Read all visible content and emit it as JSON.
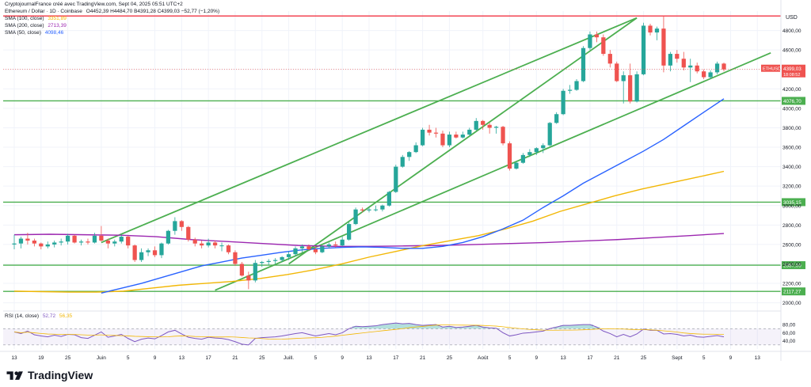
{
  "caption": "CryptojournalFrance créé avec TradingView.com, Sept 04, 2025 05:51 UTC+2",
  "symbol_line": {
    "name": "Ethereum / Dollar · 1D · Coinbase",
    "ohlc": "O4452,39 H4484,70 B4391,28 C4399,03 −52,77 (−1,20%)"
  },
  "indicators": [
    {
      "label": "SMA (100, close)",
      "value": "3351,89",
      "color": "#f2b705"
    },
    {
      "label": "SMA (200, close)",
      "value": "2713,39",
      "color": "#9c27b0"
    },
    {
      "label": "SMA (50, close)",
      "value": "4098,46",
      "color": "#2962ff"
    }
  ],
  "rsi_label": {
    "label": "RSI (14, close)",
    "v1": "52,72",
    "v2": "56,35"
  },
  "currency": "USD",
  "price_tag": {
    "symbol": "ETHUSD",
    "value": "4399,03",
    "countdown": "18:08:52"
  },
  "brand": "TradingView",
  "colors": {
    "up": "#26a69a",
    "down": "#ef5350",
    "channel": "#4caf50",
    "sma50": "#2962ff",
    "sma100": "#f2b705",
    "sma200": "#9c27b0",
    "resistance": "#f23645",
    "rsi": "#7e57c2"
  },
  "chart_data": {
    "type": "candlestick",
    "timeframe": "1D",
    "y_axis": {
      "ylim": [
        1940,
        5000
      ],
      "ticks": [
        "2000,00",
        "2200,00",
        "2400,00",
        "2600,00",
        "2800,00",
        "3000,00",
        "3200,00",
        "3400,00",
        "3600,00",
        "3800,00",
        "4000,00",
        "4200,00",
        "4400,00",
        "4600,00",
        "4800,00"
      ],
      "tick_values": [
        2000,
        2200,
        2400,
        2600,
        2800,
        3000,
        3200,
        3400,
        3600,
        3800,
        4000,
        4200,
        4400,
        4600,
        4800
      ]
    },
    "x_axis": {
      "ticks": [
        "13",
        "19",
        "25",
        "Juin",
        "5",
        "9",
        "13",
        "17",
        "21",
        "25",
        "Juill.",
        "5",
        "9",
        "13",
        "17",
        "21",
        "25",
        "Août",
        "5",
        "9",
        "13",
        "17",
        "21",
        "25",
        "Sept",
        "5",
        "9",
        "13"
      ],
      "tick_index": [
        0,
        4,
        8,
        13,
        17,
        21,
        25,
        29,
        33,
        37,
        41,
        45,
        49,
        53,
        57,
        61,
        65,
        70,
        74,
        78,
        82,
        86,
        90,
        94,
        99,
        103,
        107,
        111
      ]
    },
    "candles": [
      [
        2600,
        2700,
        2550,
        2610
      ],
      [
        2610,
        2680,
        2560,
        2660
      ],
      [
        2660,
        2720,
        2600,
        2640
      ],
      [
        2640,
        2660,
        2580,
        2610
      ],
      [
        2610,
        2620,
        2550,
        2580
      ],
      [
        2580,
        2630,
        2560,
        2600
      ],
      [
        2600,
        2640,
        2570,
        2620
      ],
      [
        2620,
        2660,
        2590,
        2630
      ],
      [
        2630,
        2710,
        2600,
        2690
      ],
      [
        2690,
        2700,
        2610,
        2620
      ],
      [
        2620,
        2650,
        2590,
        2630
      ],
      [
        2630,
        2660,
        2600,
        2620
      ],
      [
        2620,
        2720,
        2610,
        2690
      ],
      [
        2690,
        2790,
        2630,
        2640
      ],
      [
        2640,
        2660,
        2560,
        2610
      ],
      [
        2610,
        2650,
        2580,
        2630
      ],
      [
        2630,
        2700,
        2610,
        2680
      ],
      [
        2680,
        2690,
        2560,
        2590
      ],
      [
        2590,
        2600,
        2420,
        2440
      ],
      [
        2440,
        2560,
        2420,
        2520
      ],
      [
        2520,
        2560,
        2480,
        2540
      ],
      [
        2540,
        2580,
        2470,
        2490
      ],
      [
        2490,
        2620,
        2460,
        2610
      ],
      [
        2610,
        2750,
        2600,
        2740
      ],
      [
        2740,
        2880,
        2700,
        2840
      ],
      [
        2840,
        2850,
        2740,
        2780
      ],
      [
        2780,
        2790,
        2630,
        2650
      ],
      [
        2650,
        2670,
        2580,
        2610
      ],
      [
        2610,
        2640,
        2560,
        2590
      ],
      [
        2590,
        2660,
        2570,
        2620
      ],
      [
        2620,
        2640,
        2560,
        2590
      ],
      [
        2590,
        2620,
        2530,
        2590
      ],
      [
        2590,
        2600,
        2500,
        2520
      ],
      [
        2520,
        2540,
        2380,
        2400
      ],
      [
        2400,
        2420,
        2270,
        2280
      ],
      [
        2280,
        2320,
        2140,
        2230
      ],
      [
        2230,
        2440,
        2210,
        2410
      ],
      [
        2410,
        2430,
        2370,
        2420
      ],
      [
        2420,
        2450,
        2390,
        2430
      ],
      [
        2430,
        2460,
        2400,
        2440
      ],
      [
        2440,
        2480,
        2420,
        2470
      ],
      [
        2470,
        2530,
        2440,
        2500
      ],
      [
        2500,
        2580,
        2480,
        2560
      ],
      [
        2560,
        2600,
        2520,
        2580
      ],
      [
        2580,
        2600,
        2540,
        2550
      ],
      [
        2550,
        2580,
        2500,
        2520
      ],
      [
        2520,
        2590,
        2510,
        2580
      ],
      [
        2580,
        2620,
        2560,
        2600
      ],
      [
        2600,
        2630,
        2570,
        2590
      ],
      [
        2590,
        2680,
        2580,
        2650
      ],
      [
        2650,
        2830,
        2640,
        2810
      ],
      [
        2810,
        2980,
        2800,
        2960
      ],
      [
        2960,
        2980,
        2930,
        2950
      ],
      [
        2950,
        2980,
        2930,
        2960
      ],
      [
        2960,
        3000,
        2940,
        2960
      ],
      [
        2960,
        3010,
        2940,
        3000
      ],
      [
        3000,
        3150,
        2990,
        3140
      ],
      [
        3140,
        3420,
        3130,
        3400
      ],
      [
        3400,
        3520,
        3390,
        3500
      ],
      [
        3500,
        3560,
        3460,
        3550
      ],
      [
        3550,
        3650,
        3540,
        3620
      ],
      [
        3620,
        3800,
        3610,
        3780
      ],
      [
        3780,
        3830,
        3720,
        3750
      ],
      [
        3750,
        3800,
        3700,
        3740
      ],
      [
        3740,
        3770,
        3600,
        3620
      ],
      [
        3620,
        3760,
        3600,
        3730
      ],
      [
        3730,
        3760,
        3690,
        3700
      ],
      [
        3700,
        3760,
        3690,
        3730
      ],
      [
        3730,
        3800,
        3720,
        3780
      ],
      [
        3780,
        3900,
        3770,
        3870
      ],
      [
        3870,
        3880,
        3780,
        3830
      ],
      [
        3830,
        3850,
        3740,
        3800
      ],
      [
        3800,
        3820,
        3740,
        3810
      ],
      [
        3810,
        3820,
        3620,
        3640
      ],
      [
        3640,
        3660,
        3360,
        3380
      ],
      [
        3380,
        3450,
        3370,
        3440
      ],
      [
        3440,
        3540,
        3430,
        3520
      ],
      [
        3520,
        3580,
        3500,
        3550
      ],
      [
        3550,
        3600,
        3520,
        3590
      ],
      [
        3590,
        3640,
        3540,
        3620
      ],
      [
        3620,
        3860,
        3610,
        3850
      ],
      [
        3850,
        3960,
        3840,
        3940
      ],
      [
        3940,
        4200,
        3930,
        4180
      ],
      [
        4180,
        4240,
        4150,
        4190
      ],
      [
        4190,
        4300,
        4180,
        4280
      ],
      [
        4280,
        4640,
        4270,
        4620
      ],
      [
        4620,
        4790,
        4600,
        4760
      ],
      [
        4760,
        4790,
        4680,
        4730
      ],
      [
        4730,
        4760,
        4540,
        4560
      ],
      [
        4560,
        4600,
        4420,
        4460
      ],
      [
        4460,
        4480,
        4270,
        4280
      ],
      [
        4280,
        4380,
        4050,
        4340
      ],
      [
        4340,
        4460,
        4050,
        4070
      ],
      [
        4070,
        4380,
        4060,
        4350
      ],
      [
        4350,
        4880,
        4340,
        4850
      ],
      [
        4850,
        4870,
        4750,
        4780
      ],
      [
        4780,
        4840,
        4700,
        4820
      ],
      [
        4820,
        4950,
        4370,
        4440
      ],
      [
        4440,
        4580,
        4380,
        4560
      ],
      [
        4560,
        4600,
        4470,
        4510
      ],
      [
        4510,
        4580,
        4390,
        4420
      ],
      [
        4420,
        4510,
        4270,
        4440
      ],
      [
        4440,
        4470,
        4360,
        4380
      ],
      [
        4380,
        4400,
        4300,
        4320
      ],
      [
        4320,
        4390,
        4300,
        4370
      ],
      [
        4370,
        4480,
        4350,
        4460
      ],
      [
        4460,
        4470,
        4380,
        4400
      ]
    ],
    "candle_format": [
      "open",
      "high",
      "low",
      "close"
    ],
    "sma50": [
      2100,
      2150,
      2200,
      2260,
      2320,
      2380,
      2420,
      2460,
      2490,
      2520,
      2545,
      2560,
      2570,
      2575,
      2570,
      2560,
      2560,
      2580,
      2620,
      2680,
      2760,
      2850,
      2980,
      3100,
      3230,
      3340,
      3450,
      3560,
      3680,
      3820,
      3960,
      4098
    ],
    "sma100": [
      2120,
      2115,
      2110,
      2110,
      2120,
      2150,
      2180,
      2200,
      2220,
      2250,
      2290,
      2340,
      2400,
      2470,
      2530,
      2590,
      2640,
      2690,
      2760,
      2840,
      2940,
      3020,
      3100,
      3170,
      3230,
      3290,
      3352
    ],
    "sma200": [
      2700,
      2705,
      2700,
      2695,
      2680,
      2650,
      2630,
      2610,
      2590,
      2580,
      2580,
      2585,
      2590,
      2600,
      2610,
      2620,
      2635,
      2650,
      2670,
      2690,
      2713
    ],
    "horizontal_levels": [
      {
        "value": 4950,
        "label": "",
        "color": "resistance"
      },
      {
        "value": 4076.7,
        "label": "4076,70"
      },
      {
        "value": 3035.15,
        "label": "3035,15"
      },
      {
        "value": 2387.09,
        "label": "2387,09"
      },
      {
        "value": 2117.27,
        "label": "2117,27"
      }
    ],
    "channel_lines": [
      {
        "from": [
          41,
          2400
        ],
        "to": [
          93,
          4930
        ]
      },
      {
        "from": [
          30,
          2130
        ],
        "to": [
          113,
          4570
        ]
      },
      {
        "from": [
          0,
          2600
        ],
        "to": [
          0,
          2600
        ]
      }
    ],
    "rsi": {
      "ylim": [
        20,
        90
      ],
      "ticks": [
        "40,00",
        "60,00",
        "80,00"
      ],
      "tick_values": [
        40,
        60,
        80
      ],
      "band": [
        30,
        70
      ],
      "values": [
        62,
        58,
        64,
        55,
        52,
        50,
        54,
        51,
        56,
        55,
        48,
        46,
        54,
        62,
        49,
        52,
        56,
        46,
        38,
        44,
        47,
        45,
        53,
        62,
        66,
        57,
        49,
        46,
        44,
        49,
        47,
        46,
        43,
        38,
        32,
        30,
        46,
        48,
        49,
        50,
        52,
        55,
        58,
        60,
        56,
        52,
        55,
        58,
        55,
        60,
        70,
        76,
        75,
        76,
        77,
        80,
        82,
        84,
        82,
        83,
        80,
        78,
        79,
        80,
        74,
        76,
        73,
        74,
        76,
        78,
        74,
        72,
        71,
        60,
        52,
        55,
        59,
        60,
        62,
        64,
        70,
        74,
        78,
        78,
        79,
        80,
        80,
        74,
        64,
        58,
        50,
        56,
        50,
        57,
        69,
        66,
        66,
        57,
        58,
        56,
        52,
        54,
        50,
        49,
        51,
        53,
        50
      ]
    }
  }
}
